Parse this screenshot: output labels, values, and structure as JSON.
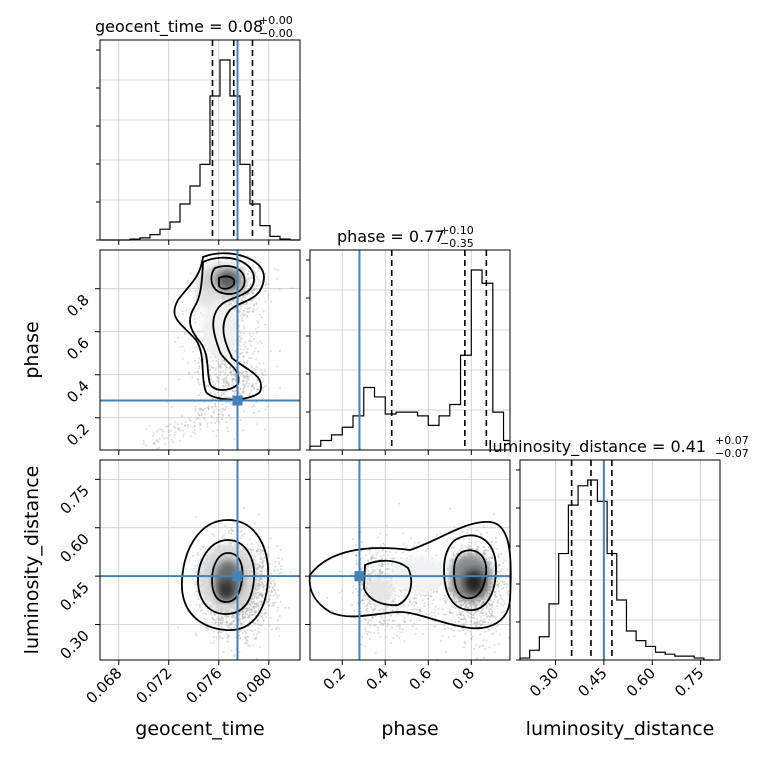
{
  "colors": {
    "truth": "#4682b4",
    "contour": "#000000",
    "grid": "#c8c8c8",
    "points": "#9a9a9a"
  },
  "chart_data": {
    "type": "corner",
    "parameters": [
      "geocent_time",
      "phase",
      "luminosity_distance"
    ],
    "truths": {
      "geocent_time": 0.0775,
      "phase": 0.28,
      "luminosity_distance": 0.45
    },
    "titles": {
      "geocent_time": {
        "text": "geocent_time = 0.08",
        "sup": "+0.00",
        "sub": "−0.00"
      },
      "phase": {
        "text": "phase = 0.77",
        "sup": "+0.10",
        "sub": "−0.35"
      },
      "luminosity_distance": {
        "text": "luminosity_distance = 0.41",
        "sup": "+0.07",
        "sub": "−0.07"
      }
    },
    "axes": {
      "geocent_time": {
        "range": [
          0.0665,
          0.0825
        ],
        "ticks": [
          0.068,
          0.072,
          0.076,
          0.08
        ],
        "tick_labels": [
          "0.068",
          "0.072",
          "0.076",
          "0.080"
        ]
      },
      "phase": {
        "range": [
          0.05,
          0.98
        ],
        "ticks": [
          0.2,
          0.4,
          0.6,
          0.8
        ],
        "tick_labels": [
          "0.2",
          "0.4",
          "0.6",
          "0.8"
        ]
      },
      "luminosity_distance": {
        "range": [
          0.19,
          0.81
        ],
        "ticks": [
          0.3,
          0.45,
          0.6,
          0.75
        ],
        "tick_labels": [
          "0.30",
          "0.45",
          "0.60",
          "0.75"
        ]
      }
    },
    "quantiles": {
      "geocent_time": [
        0.0755,
        0.0772,
        0.0787
      ],
      "phase": [
        0.43,
        0.77,
        0.87
      ],
      "luminosity_distance": [
        0.35,
        0.41,
        0.475
      ]
    },
    "histograms": {
      "geocent_time": {
        "edges": [
          0.0665,
          0.0673,
          0.0681,
          0.0689,
          0.0697,
          0.0705,
          0.0713,
          0.0721,
          0.0729,
          0.0737,
          0.0745,
          0.0753,
          0.0761,
          0.0769,
          0.0777,
          0.0785,
          0.0793,
          0.0801,
          0.0809,
          0.0817,
          0.0825
        ],
        "counts": [
          0,
          0,
          0,
          0.005,
          0.012,
          0.03,
          0.06,
          0.1,
          0.2,
          0.3,
          0.42,
          0.8,
          1.0,
          0.8,
          0.42,
          0.2,
          0.08,
          0.02,
          0.005,
          0
        ]
      },
      "phase": {
        "edges": [
          0.05,
          0.1,
          0.15,
          0.2,
          0.25,
          0.3,
          0.35,
          0.4,
          0.45,
          0.5,
          0.55,
          0.6,
          0.65,
          0.7,
          0.75,
          0.8,
          0.85,
          0.9,
          0.95,
          0.98
        ],
        "counts": [
          0.02,
          0.05,
          0.08,
          0.12,
          0.18,
          0.33,
          0.28,
          0.19,
          0.2,
          0.2,
          0.18,
          0.13,
          0.18,
          0.24,
          0.5,
          0.95,
          0.88,
          0.2,
          0.05
        ]
      },
      "luminosity_distance": {
        "edges": [
          0.19,
          0.22,
          0.25,
          0.28,
          0.31,
          0.34,
          0.37,
          0.4,
          0.43,
          0.46,
          0.49,
          0.52,
          0.55,
          0.58,
          0.61,
          0.64,
          0.67,
          0.7,
          0.73,
          0.76,
          0.79
        ],
        "counts": [
          0.01,
          0.05,
          0.12,
          0.29,
          0.55,
          0.8,
          0.9,
          0.93,
          0.82,
          0.55,
          0.31,
          0.15,
          0.1,
          0.07,
          0.04,
          0.03,
          0.02,
          0.02,
          0.01,
          0
        ]
      }
    }
  }
}
